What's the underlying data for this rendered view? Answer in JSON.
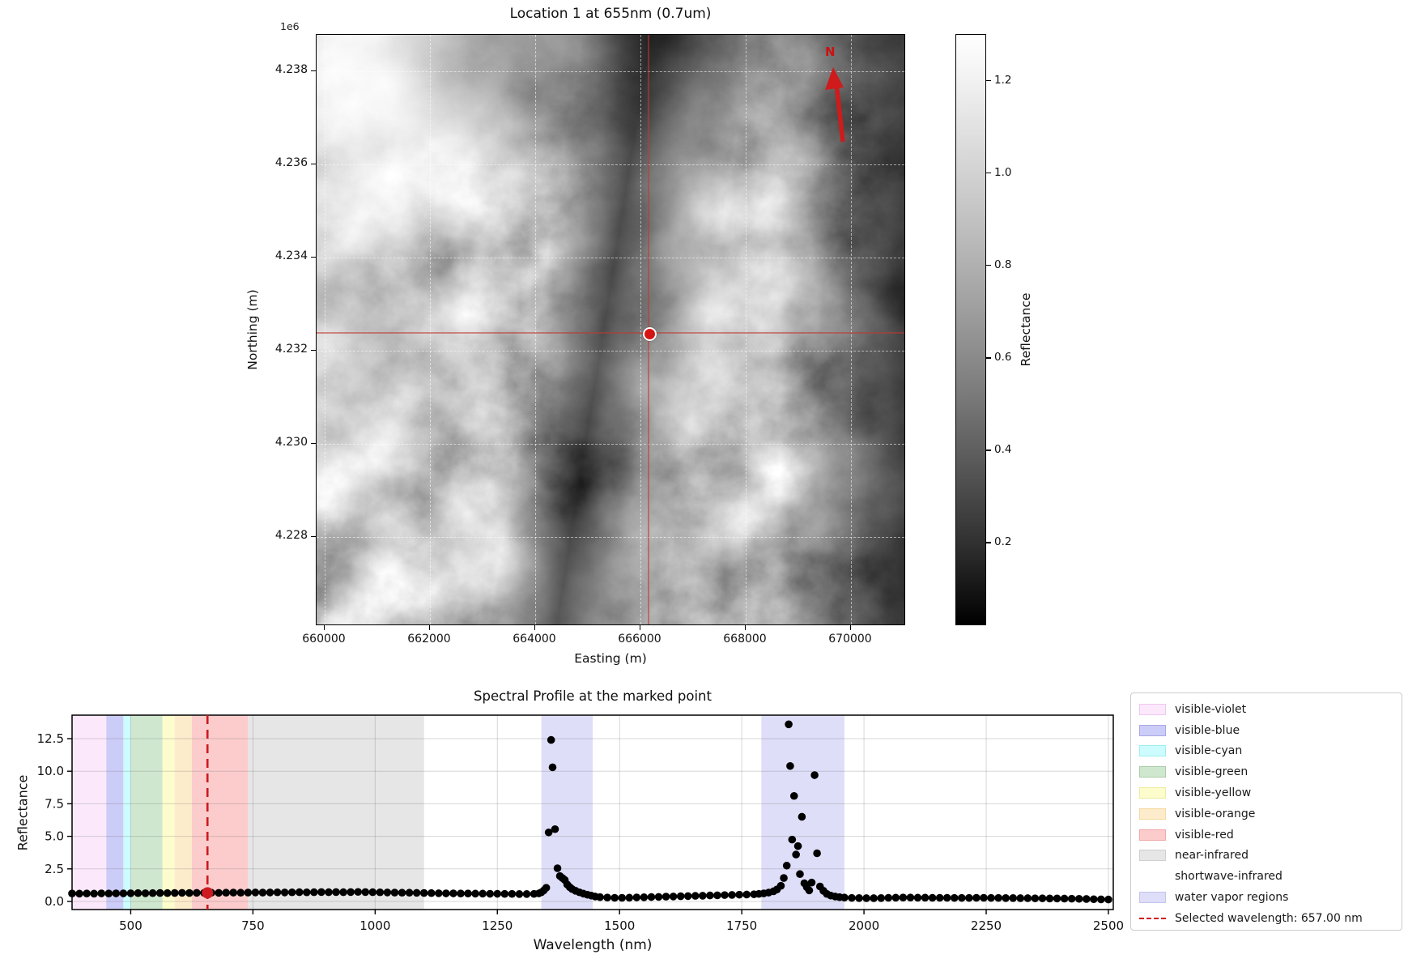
{
  "map_panel": {
    "title": "Location 1 at 655nm (0.7um)",
    "axis_offset_label": "1e6",
    "xlabel": "Easting (m)",
    "ylabel": "Northing (m)",
    "x_ticks": [
      "660000",
      "662000",
      "664000",
      "666000",
      "668000",
      "670000"
    ],
    "y_ticks": [
      "4.238",
      "4.236",
      "4.234",
      "4.232",
      "4.230",
      "4.228"
    ],
    "north_arrow_label": "N",
    "marker_color": "#d41414",
    "crosshair_color": "rgba(195,55,45,0.55)"
  },
  "colorbar": {
    "label": "Reflectance",
    "ticks": [
      "1.2",
      "1.0",
      "0.8",
      "0.6",
      "0.4",
      "0.2"
    ],
    "vmin": 0.02,
    "vmax": 1.3
  },
  "spectral_panel": {
    "title": "Spectral Profile at the marked point",
    "xlabel": "Wavelength (nm)",
    "ylabel": "Reflectance"
  },
  "legend": {
    "items": [
      {
        "label": "visible-violet",
        "type": "patch",
        "color": "#fbe9fb",
        "border": "#f0c6f0"
      },
      {
        "label": "visible-blue",
        "type": "patch",
        "color": "#ccccf8",
        "border": "#a8a8e8"
      },
      {
        "label": "visible-cyan",
        "type": "patch",
        "color": "#ccfcfe",
        "border": "#a0eef2"
      },
      {
        "label": "visible-green",
        "type": "patch",
        "color": "#cfe7cf",
        "border": "#a9cda9"
      },
      {
        "label": "visible-yellow",
        "type": "patch",
        "color": "#fcfccd",
        "border": "#ececa0"
      },
      {
        "label": "visible-orange",
        "type": "patch",
        "color": "#fdeccb",
        "border": "#f5d9a0"
      },
      {
        "label": "visible-red",
        "type": "patch",
        "color": "#fccccc",
        "border": "#f2a8a8"
      },
      {
        "label": "near-infrared",
        "type": "patch",
        "color": "#e6e6e6",
        "border": "#cfcfcf"
      },
      {
        "label": "shortwave-infrared",
        "type": "none",
        "color": "transparent",
        "border": "transparent"
      },
      {
        "label": "water vapor regions",
        "type": "patch",
        "color": "#dedef8",
        "border": "#c3c3ee"
      },
      {
        "label": "Selected wavelength: 657.00 nm",
        "type": "dashed-line",
        "color": "#cd1a1f",
        "border": "#cd1a1f"
      }
    ]
  },
  "chart_data": [
    {
      "type": "heatmap",
      "title": "Location 1 at 655nm (0.7um)",
      "xlabel": "Easting (m)",
      "ylabel": "Northing (m)",
      "x_ticks": [
        660000,
        662000,
        664000,
        666000,
        668000,
        670000
      ],
      "y_ticks_1e6": [
        4.238,
        4.236,
        4.234,
        4.232,
        4.23,
        4.228
      ],
      "colormap": "gray",
      "colorbar_label": "Reflectance",
      "colorbar_ticks": [
        0.2,
        0.4,
        0.6,
        0.8,
        1.0,
        1.2
      ],
      "value_range": [
        0.02,
        1.3
      ],
      "grid": true,
      "annotations": [
        "north arrow N (red)",
        "red crosshair and marker at the sampled pixel near easting 666000, northing 4233000"
      ]
    },
    {
      "type": "scatter",
      "title": "Spectral Profile at the marked point",
      "xlabel": "Wavelength (nm)",
      "ylabel": "Reflectance",
      "xlim": [
        380,
        2510
      ],
      "ylim": [
        -0.62,
        14.3
      ],
      "x_ticks": [
        500,
        750,
        1000,
        1250,
        1500,
        1750,
        2000,
        2250,
        2500
      ],
      "y_ticks": [
        {
          "v": 0,
          "label": "0.0"
        },
        {
          "v": 2.5,
          "label": "2.5"
        },
        {
          "v": 5,
          "label": "5.0"
        },
        {
          "v": 7.5,
          "label": "7.5"
        },
        {
          "v": 10,
          "label": "10.0"
        },
        {
          "v": 12.5,
          "label": "12.5"
        }
      ],
      "grid": true,
      "legend_position": "outside-right",
      "marker_color": "#000000",
      "selected_wavelength_nm": 657,
      "selected_label": "Selected wavelength: 657.00 nm",
      "selected_color": "#cd1a1f",
      "selected_point": [
        657,
        0.66
      ],
      "wavelength_bands": [
        {
          "label": "visible-violet",
          "from": 380,
          "to": 450,
          "fill": "#fbe9fb"
        },
        {
          "label": "visible-blue",
          "from": 450,
          "to": 485,
          "fill": "#ccccf8"
        },
        {
          "label": "visible-cyan",
          "from": 485,
          "to": 500,
          "fill": "#ccfcfe"
        },
        {
          "label": "visible-green",
          "from": 500,
          "to": 565,
          "fill": "#cfe7cf"
        },
        {
          "label": "visible-yellow",
          "from": 565,
          "to": 590,
          "fill": "#fcfccd"
        },
        {
          "label": "visible-orange",
          "from": 590,
          "to": 625,
          "fill": "#fdeccb"
        },
        {
          "label": "visible-red",
          "from": 625,
          "to": 740,
          "fill": "#fccccc"
        },
        {
          "label": "near-infrared",
          "from": 740,
          "to": 1100,
          "fill": "#e6e6e6"
        },
        {
          "label": "shortwave-infrared",
          "from": 1100,
          "to": 2500,
          "fill": "none"
        }
      ],
      "water_vapor_regions": {
        "fill": "#dedef8",
        "ranges": [
          [
            1340,
            1445
          ],
          [
            1790,
            1960
          ]
        ]
      },
      "points": [
        [
          380,
          0.61
        ],
        [
          395,
          0.6
        ],
        [
          410,
          0.61
        ],
        [
          425,
          0.6
        ],
        [
          440,
          0.62
        ],
        [
          455,
          0.61
        ],
        [
          470,
          0.62
        ],
        [
          485,
          0.62
        ],
        [
          500,
          0.63
        ],
        [
          515,
          0.64
        ],
        [
          530,
          0.63
        ],
        [
          545,
          0.64
        ],
        [
          560,
          0.65
        ],
        [
          575,
          0.64
        ],
        [
          590,
          0.65
        ],
        [
          605,
          0.66
        ],
        [
          620,
          0.65
        ],
        [
          635,
          0.66
        ],
        [
          650,
          0.66
        ],
        [
          665,
          0.67
        ],
        [
          680,
          0.66
        ],
        [
          695,
          0.67
        ],
        [
          710,
          0.68
        ],
        [
          725,
          0.67
        ],
        [
          740,
          0.68
        ],
        [
          755,
          0.69
        ],
        [
          770,
          0.68
        ],
        [
          785,
          0.69
        ],
        [
          800,
          0.7
        ],
        [
          815,
          0.69
        ],
        [
          830,
          0.7
        ],
        [
          845,
          0.71
        ],
        [
          860,
          0.7
        ],
        [
          875,
          0.71
        ],
        [
          890,
          0.72
        ],
        [
          905,
          0.71
        ],
        [
          920,
          0.72
        ],
        [
          935,
          0.71
        ],
        [
          950,
          0.72
        ],
        [
          965,
          0.73
        ],
        [
          980,
          0.72
        ],
        [
          995,
          0.71
        ],
        [
          1010,
          0.7
        ],
        [
          1025,
          0.69
        ],
        [
          1040,
          0.68
        ],
        [
          1055,
          0.67
        ],
        [
          1070,
          0.67
        ],
        [
          1085,
          0.66
        ],
        [
          1100,
          0.65
        ],
        [
          1115,
          0.64
        ],
        [
          1130,
          0.63
        ],
        [
          1145,
          0.62
        ],
        [
          1160,
          0.62
        ],
        [
          1175,
          0.61
        ],
        [
          1190,
          0.61
        ],
        [
          1205,
          0.6
        ],
        [
          1220,
          0.6
        ],
        [
          1235,
          0.59
        ],
        [
          1250,
          0.59
        ],
        [
          1265,
          0.58
        ],
        [
          1280,
          0.58
        ],
        [
          1295,
          0.57
        ],
        [
          1310,
          0.57
        ],
        [
          1325,
          0.58
        ],
        [
          1335,
          0.62
        ],
        [
          1340,
          0.7
        ],
        [
          1345,
          0.85
        ],
        [
          1350,
          1.05
        ],
        [
          1355,
          5.3
        ],
        [
          1360,
          12.4
        ],
        [
          1363,
          10.3
        ],
        [
          1368,
          5.55
        ],
        [
          1373,
          2.55
        ],
        [
          1378,
          1.95
        ],
        [
          1383,
          1.8
        ],
        [
          1388,
          1.65
        ],
        [
          1393,
          1.3
        ],
        [
          1398,
          1.1
        ],
        [
          1403,
          0.95
        ],
        [
          1410,
          0.82
        ],
        [
          1418,
          0.7
        ],
        [
          1426,
          0.6
        ],
        [
          1434,
          0.52
        ],
        [
          1442,
          0.45
        ],
        [
          1450,
          0.38
        ],
        [
          1460,
          0.33
        ],
        [
          1475,
          0.3
        ],
        [
          1490,
          0.28
        ],
        [
          1505,
          0.28
        ],
        [
          1520,
          0.29
        ],
        [
          1535,
          0.31
        ],
        [
          1550,
          0.32
        ],
        [
          1565,
          0.34
        ],
        [
          1580,
          0.35
        ],
        [
          1595,
          0.37
        ],
        [
          1610,
          0.38
        ],
        [
          1625,
          0.4
        ],
        [
          1640,
          0.41
        ],
        [
          1655,
          0.43
        ],
        [
          1670,
          0.44
        ],
        [
          1685,
          0.46
        ],
        [
          1700,
          0.47
        ],
        [
          1715,
          0.49
        ],
        [
          1730,
          0.5
        ],
        [
          1745,
          0.52
        ],
        [
          1760,
          0.53
        ],
        [
          1775,
          0.55
        ],
        [
          1785,
          0.58
        ],
        [
          1795,
          0.62
        ],
        [
          1805,
          0.68
        ],
        [
          1815,
          0.78
        ],
        [
          1822,
          0.92
        ],
        [
          1830,
          1.2
        ],
        [
          1836,
          1.8
        ],
        [
          1842,
          2.75
        ],
        [
          1846,
          13.6
        ],
        [
          1849,
          10.4
        ],
        [
          1853,
          4.75
        ],
        [
          1857,
          8.1
        ],
        [
          1861,
          3.6
        ],
        [
          1865,
          4.25
        ],
        [
          1869,
          2.1
        ],
        [
          1873,
          6.5
        ],
        [
          1878,
          1.4
        ],
        [
          1883,
          1.1
        ],
        [
          1888,
          0.85
        ],
        [
          1893,
          1.45
        ],
        [
          1899,
          9.7
        ],
        [
          1904,
          3.7
        ],
        [
          1910,
          1.15
        ],
        [
          1917,
          0.82
        ],
        [
          1924,
          0.58
        ],
        [
          1932,
          0.45
        ],
        [
          1941,
          0.38
        ],
        [
          1950,
          0.33
        ],
        [
          1960,
          0.3
        ],
        [
          1975,
          0.27
        ],
        [
          1990,
          0.26
        ],
        [
          2005,
          0.25
        ],
        [
          2020,
          0.25
        ],
        [
          2035,
          0.26
        ],
        [
          2050,
          0.28
        ],
        [
          2065,
          0.29
        ],
        [
          2080,
          0.3
        ],
        [
          2095,
          0.3
        ],
        [
          2110,
          0.29
        ],
        [
          2125,
          0.29
        ],
        [
          2140,
          0.28
        ],
        [
          2155,
          0.28
        ],
        [
          2170,
          0.28
        ],
        [
          2185,
          0.27
        ],
        [
          2200,
          0.27
        ],
        [
          2215,
          0.27
        ],
        [
          2230,
          0.28
        ],
        [
          2245,
          0.28
        ],
        [
          2260,
          0.27
        ],
        [
          2275,
          0.27
        ],
        [
          2290,
          0.26
        ],
        [
          2305,
          0.26
        ],
        [
          2320,
          0.25
        ],
        [
          2335,
          0.25
        ],
        [
          2350,
          0.24
        ],
        [
          2365,
          0.24
        ],
        [
          2380,
          0.23
        ],
        [
          2395,
          0.23
        ],
        [
          2410,
          0.22
        ],
        [
          2425,
          0.21
        ],
        [
          2440,
          0.2
        ],
        [
          2455,
          0.19
        ],
        [
          2470,
          0.17
        ],
        [
          2485,
          0.16
        ],
        [
          2500,
          0.15
        ]
      ]
    }
  ]
}
